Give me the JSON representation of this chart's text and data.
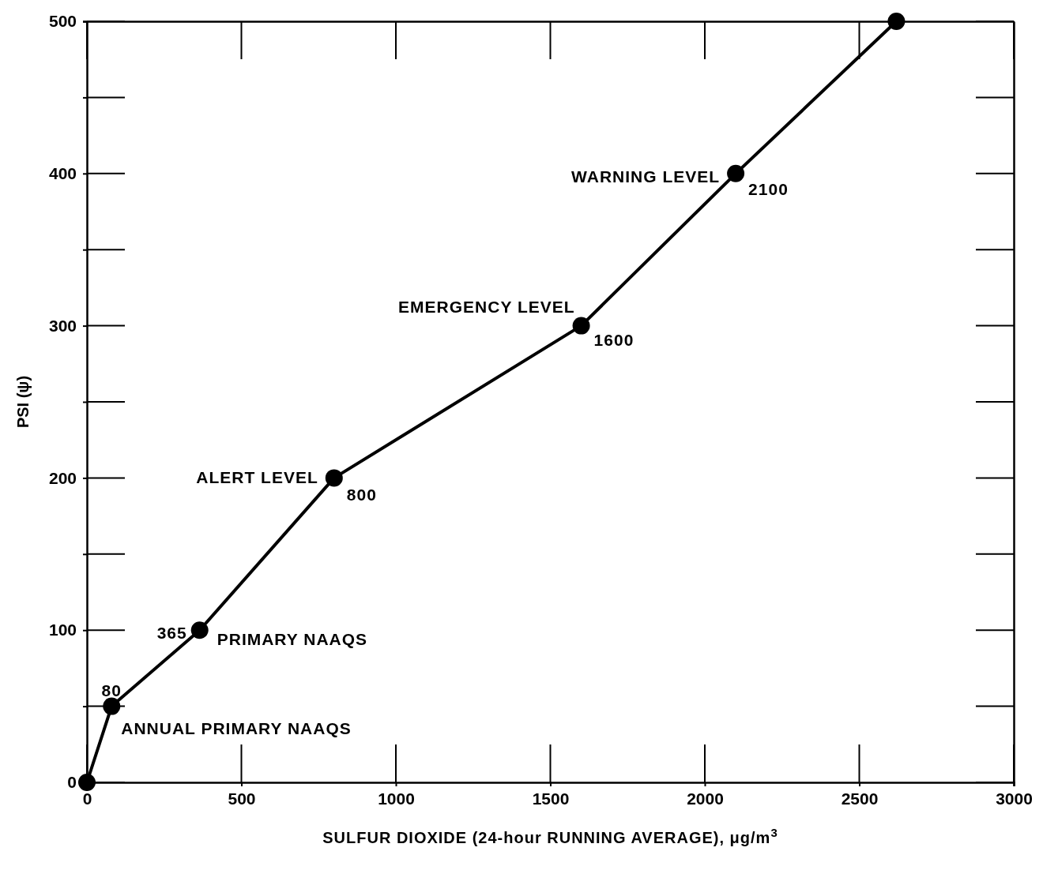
{
  "chart_data": {
    "type": "line",
    "xlabel": "SULFUR DIOXIDE (24-hour RUNNING AVERAGE), μg/m$^{3}$",
    "ylabel": "PSI (ψ)",
    "x": [
      0,
      80,
      365,
      800,
      1600,
      2100,
      2620
    ],
    "series": [
      {
        "color": "#000000",
        "values": [
          0,
          50,
          100,
          200,
          300,
          400,
          500
        ]
      }
    ],
    "xlim": [
      0,
      3000
    ],
    "xticks": [
      0,
      500,
      1000,
      1500,
      2000,
      2500,
      3000
    ],
    "ylim": [
      0,
      500
    ],
    "yticks": [
      0,
      {
        "value": 50,
        "label": null
      },
      100,
      {
        "value": 150,
        "label": null
      },
      200,
      {
        "value": 250,
        "label": null
      },
      300,
      {
        "value": 350,
        "label": null
      },
      400,
      {
        "value": 450,
        "label": null
      },
      500
    ],
    "marker": "circle",
    "line_style": "solid",
    "grid": false,
    "annotations": [
      {
        "text": "80",
        "x": 80,
        "y": 50
      },
      {
        "text": "ANNUAL PRIMARY NAAQS",
        "x": 80,
        "y": 50
      },
      {
        "text": "365",
        "x": 365,
        "y": 100
      },
      {
        "text": "PRIMARY NAAQS",
        "x": 365,
        "y": 100
      },
      {
        "text": "ALERT LEVEL",
        "x": 800,
        "y": 200
      },
      {
        "text": "800",
        "x": 800,
        "y": 200
      },
      {
        "text": "EMERGENCY LEVEL",
        "x": 1600,
        "y": 300
      },
      {
        "text": "1600",
        "x": 1600,
        "y": 300
      },
      {
        "text": "WARNING LEVEL",
        "x": 2100,
        "y": 400
      },
      {
        "text": "2100",
        "x": 2100,
        "y": 400
      }
    ]
  }
}
